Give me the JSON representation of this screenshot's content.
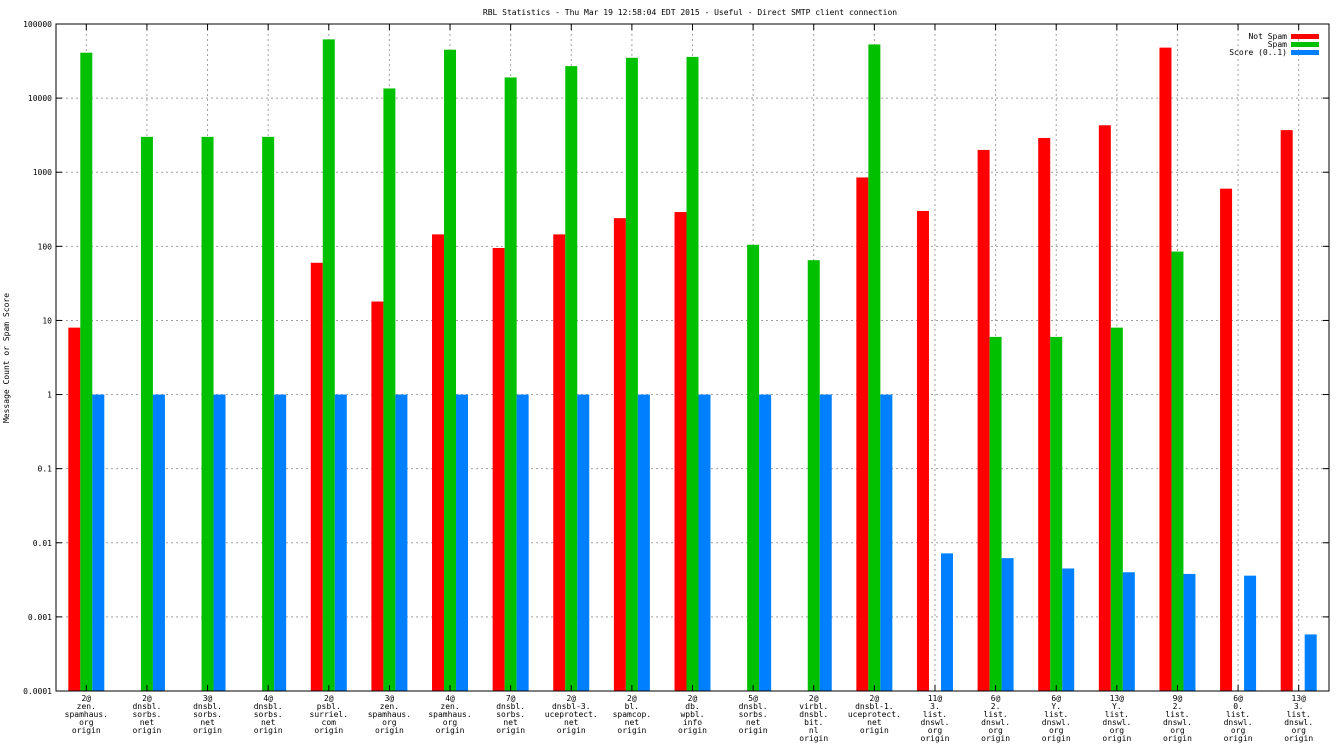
{
  "chart_data": {
    "type": "bar",
    "title": "RBL Statistics - Thu Mar 19 12:58:04 EDT 2015 - Useful - Direct SMTP client connection",
    "xlabel": "",
    "ylabel": "Message Count or Spam Score",
    "scale": "log",
    "ylim": [
      0.0001,
      100000
    ],
    "yticks": [
      "0.0001",
      "0.001",
      "0.01",
      "0.1",
      "1",
      "10",
      "100",
      "1000",
      "10000",
      "100000"
    ],
    "grid": true,
    "legend_position": "top-right",
    "categories": [
      [
        "2@",
        "zen.",
        "spamhaus.",
        "org",
        "origin"
      ],
      [
        "2@",
        "dnsbl.",
        "sorbs.",
        "net",
        "origin"
      ],
      [
        "3@",
        "dnsbl.",
        "sorbs.",
        "net",
        "origin"
      ],
      [
        "4@",
        "dnsbl.",
        "sorbs.",
        "net",
        "origin"
      ],
      [
        "2@",
        "psbl.",
        "surriel.",
        "com",
        "origin"
      ],
      [
        "3@",
        "zen.",
        "spamhaus.",
        "org",
        "origin"
      ],
      [
        "4@",
        "zen.",
        "spamhaus.",
        "org",
        "origin"
      ],
      [
        "7@",
        "dnsbl.",
        "sorbs.",
        "net",
        "origin"
      ],
      [
        "2@",
        "dnsbl-3.",
        "uceprotect.",
        "net",
        "origin"
      ],
      [
        "2@",
        "bl.",
        "spamcop.",
        "net",
        "origin"
      ],
      [
        "2@",
        "db.",
        "wpbl.",
        "info",
        "origin"
      ],
      [
        "5@",
        "dnsbl.",
        "sorbs.",
        "net",
        "origin"
      ],
      [
        "2@",
        "virbl.",
        "dnsbl.",
        "bit.",
        "nl",
        "origin"
      ],
      [
        "2@",
        "dnsbl-1.",
        "uceprotect.",
        "net",
        "origin"
      ],
      [
        "11@",
        "3.",
        "list.",
        "dnswl.",
        "org",
        "origin"
      ],
      [
        "6@",
        "2.",
        "list.",
        "dnswl.",
        "org",
        "origin"
      ],
      [
        "6@",
        "Y.",
        "list.",
        "dnswl.",
        "org",
        "origin"
      ],
      [
        "13@",
        "Y.",
        "list.",
        "dnswl.",
        "org",
        "origin"
      ],
      [
        "9@",
        "2.",
        "list.",
        "dnswl.",
        "org",
        "origin"
      ],
      [
        "6@",
        "0.",
        "list.",
        "dnswl.",
        "org",
        "origin"
      ],
      [
        "13@",
        "3.",
        "list.",
        "dnswl.",
        "org",
        "origin"
      ]
    ],
    "series": [
      {
        "name": "Not Spam",
        "color": "#ff0000",
        "values": [
          8,
          null,
          null,
          null,
          60,
          18,
          145,
          95,
          145,
          240,
          290,
          null,
          null,
          850,
          300,
          2000,
          2900,
          4300,
          48000,
          600,
          3700
        ]
      },
      {
        "name": "Spam",
        "color": "#00c000",
        "values": [
          41000,
          3000,
          3000,
          3000,
          62000,
          13500,
          45000,
          19000,
          27000,
          35000,
          36000,
          105,
          65,
          53000,
          null,
          6,
          6,
          8,
          85,
          null,
          null
        ]
      },
      {
        "name": "Score (0..1)",
        "color": "#0080ff",
        "values": [
          1,
          1,
          1,
          1,
          1,
          1,
          1,
          1,
          1,
          1,
          1,
          1,
          1,
          1,
          0.0072,
          0.0062,
          0.0045,
          0.004,
          0.0038,
          0.0036,
          0.00058
        ]
      }
    ]
  }
}
